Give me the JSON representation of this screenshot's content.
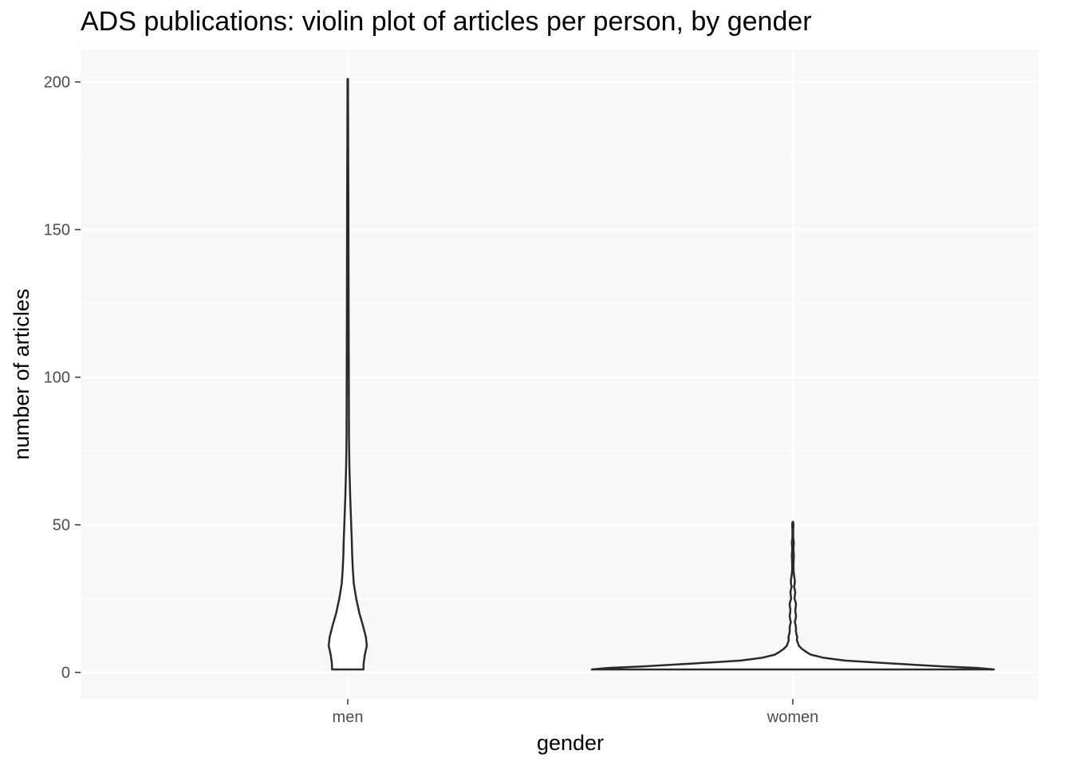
{
  "chart_data": {
    "type": "violin",
    "title": "ADS publications: violin plot of articles per person, by gender",
    "xlabel": "gender",
    "ylabel": "number of articles",
    "categories": [
      "men",
      "women"
    ],
    "yticks": [
      0,
      50,
      100,
      150,
      200
    ],
    "ylim": [
      -9,
      211
    ],
    "grid": true,
    "panel_color": "#f8f8f8",
    "line_color": "#2a2a2a",
    "series": [
      {
        "category": "men",
        "min": 1,
        "max": 201,
        "density_profile": [
          [
            1,
            0.078
          ],
          [
            3,
            0.079
          ],
          [
            6,
            0.085
          ],
          [
            9,
            0.095
          ],
          [
            12,
            0.09
          ],
          [
            16,
            0.075
          ],
          [
            20,
            0.058
          ],
          [
            25,
            0.042
          ],
          [
            30,
            0.03
          ],
          [
            35,
            0.025
          ],
          [
            40,
            0.022
          ],
          [
            45,
            0.02
          ],
          [
            50,
            0.017
          ],
          [
            60,
            0.012
          ],
          [
            70,
            0.008
          ],
          [
            80,
            0.006
          ],
          [
            100,
            0.005
          ],
          [
            130,
            0.004
          ],
          [
            160,
            0.003
          ],
          [
            180,
            0.002
          ],
          [
            201,
            0.001
          ]
        ]
      },
      {
        "category": "women",
        "min": 1,
        "max": 51,
        "density_profile": [
          [
            1,
            1.0
          ],
          [
            1.5,
            0.92
          ],
          [
            2,
            0.75
          ],
          [
            3,
            0.5
          ],
          [
            4,
            0.26
          ],
          [
            5,
            0.15
          ],
          [
            6,
            0.09
          ],
          [
            7,
            0.065
          ],
          [
            8,
            0.045
          ],
          [
            9,
            0.03
          ],
          [
            10,
            0.025
          ],
          [
            11,
            0.02
          ],
          [
            12,
            0.022
          ],
          [
            13,
            0.018
          ],
          [
            14,
            0.015
          ],
          [
            15,
            0.016
          ],
          [
            16,
            0.014
          ],
          [
            17,
            0.01
          ],
          [
            18,
            0.013
          ],
          [
            19,
            0.016
          ],
          [
            20,
            0.014
          ],
          [
            21,
            0.012
          ],
          [
            22,
            0.014
          ],
          [
            23,
            0.016
          ],
          [
            24,
            0.013
          ],
          [
            25,
            0.008
          ],
          [
            26,
            0.01
          ],
          [
            27,
            0.012
          ],
          [
            28,
            0.01
          ],
          [
            29,
            0.006
          ],
          [
            30,
            0.009
          ],
          [
            31,
            0.01
          ],
          [
            32,
            0.008
          ],
          [
            33,
            0.006
          ],
          [
            34,
            0.004
          ],
          [
            36,
            0.003
          ],
          [
            38,
            0.004
          ],
          [
            40,
            0.005
          ],
          [
            41,
            0.003
          ],
          [
            42,
            0.003
          ],
          [
            43,
            0.004
          ],
          [
            44,
            0.005
          ],
          [
            45,
            0.003
          ],
          [
            46,
            0.002
          ],
          [
            48,
            0.002
          ],
          [
            50,
            0.003
          ],
          [
            51,
            0.001
          ]
        ]
      }
    ]
  }
}
